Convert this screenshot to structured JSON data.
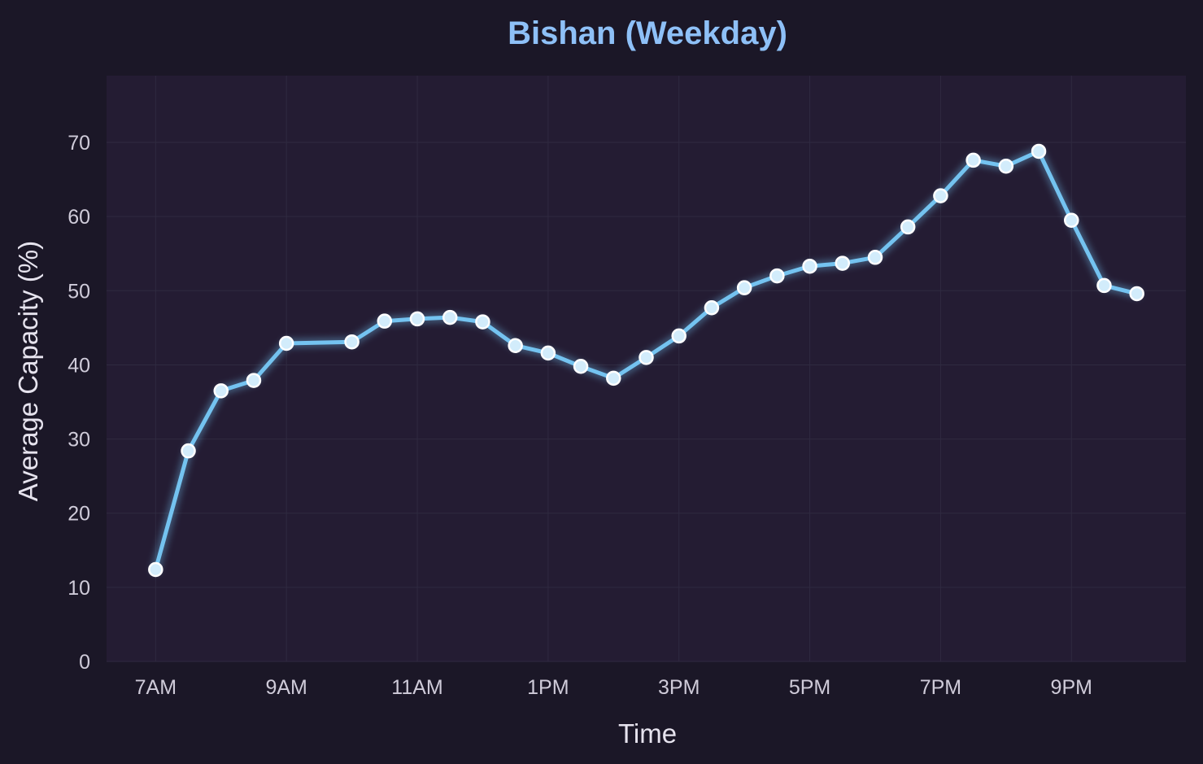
{
  "colors": {
    "background": "#1b1727",
    "plot_background": "#241c33",
    "grid": "#2f2a40",
    "title": "#8ec0f7",
    "axis_text": "#e6e3ee",
    "tick_text": "#cfcbd9",
    "line": "#74c3f0",
    "marker_edge": "#ffffff",
    "marker_fill": "#d2ecfb"
  },
  "chart_data": {
    "type": "line",
    "title": "Bishan (Weekday)",
    "xlabel": "Time",
    "ylabel": "Average Capacity (%)",
    "ylim": [
      0,
      79
    ],
    "yticks": [
      0,
      10,
      20,
      30,
      40,
      50,
      60,
      70
    ],
    "xlim": [
      6.25,
      22.75
    ],
    "xticks": [
      {
        "value": 7,
        "label": "7AM"
      },
      {
        "value": 9,
        "label": "9AM"
      },
      {
        "value": 11,
        "label": "11AM"
      },
      {
        "value": 13,
        "label": "1PM"
      },
      {
        "value": 15,
        "label": "3PM"
      },
      {
        "value": 17,
        "label": "5PM"
      },
      {
        "value": 19,
        "label": "7PM"
      },
      {
        "value": 21,
        "label": "9PM"
      }
    ],
    "grid": true,
    "series": [
      {
        "x": [
          7,
          7.5,
          8,
          8.5,
          9,
          10,
          10.5,
          11,
          11.5,
          12,
          12.5,
          13,
          13.5,
          14,
          14.5,
          15,
          15.5,
          16,
          16.5,
          17,
          17.5,
          18,
          18.5,
          19,
          19.5,
          20,
          20.5,
          21,
          21.5,
          22
        ],
        "y": [
          12.4,
          28.4,
          36.5,
          37.9,
          42.9,
          43.1,
          45.9,
          46.2,
          46.4,
          45.8,
          42.6,
          41.6,
          39.8,
          38.2,
          41.0,
          43.9,
          47.7,
          50.4,
          52.0,
          53.3,
          53.7,
          54.5,
          58.6,
          62.8,
          67.6,
          66.8,
          68.8,
          59.5,
          50.7,
          49.6
        ]
      }
    ]
  }
}
